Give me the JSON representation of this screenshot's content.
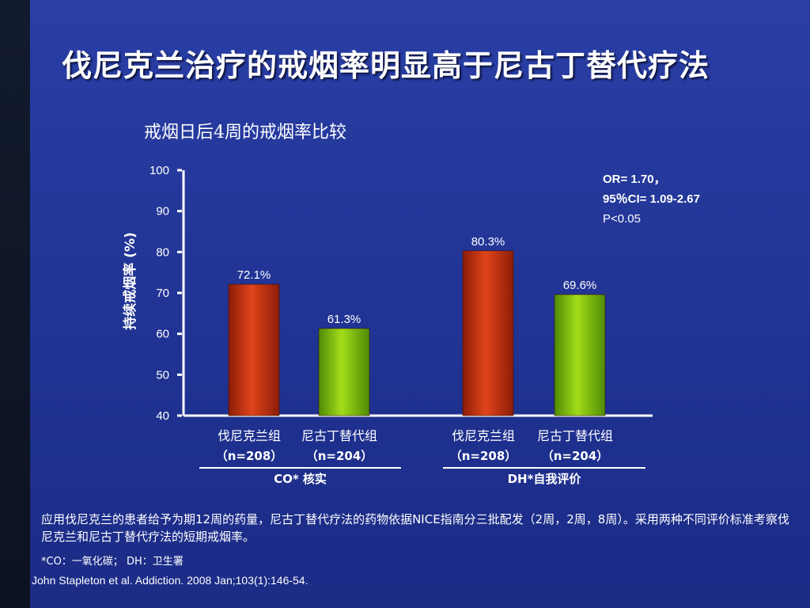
{
  "slide": {
    "title": "伐尼克兰治疗的戒烟率明显高于尼古丁替代疗法",
    "footnote": "应用伐尼克兰的患者给予为期12周的药量，尼古丁替代疗法的药物依据NICE指南分三批配发（2周，2周，8周）。采用两种不同评价标准考察伐尼克兰和尼古丁替代疗法的短期戒烟率。",
    "abbreviations": "*CO：一氧化碳； DH：卫生署",
    "reference": "John Stapleton et al. Addiction. 2008 Jan;103(1):146-54."
  },
  "stats": {
    "line1": "OR= 1.70，",
    "line2": "95％CI= 1.09-2.67",
    "line3": "P<0.05"
  },
  "colors": {
    "varenicline_bar": "#c0300f",
    "nrt_bar": "#7fc40a",
    "background": "#2337a0",
    "axis": "#ffffff"
  },
  "chart_data": {
    "type": "bar",
    "title": "戒烟日后4周的戒烟率比较",
    "ylabel": "持续戒烟率 (%)",
    "ylim": [
      40,
      100
    ],
    "yticks": [
      40,
      50,
      60,
      70,
      80,
      90,
      100
    ],
    "bars": [
      {
        "group": "CO* 核实",
        "name": "伐尼克兰组",
        "n": "（n=208）",
        "value": 72.1,
        "label": "72.1%",
        "color": "#c0300f"
      },
      {
        "group": "CO* 核实",
        "name": "尼古丁替代组",
        "n": "（n=204）",
        "value": 61.3,
        "label": "61.3%",
        "color": "#7fc40a"
      },
      {
        "group": "DH*自我评价",
        "name": "伐尼克兰组",
        "n": "（n=208）",
        "value": 80.3,
        "label": "80.3%",
        "color": "#c0300f"
      },
      {
        "group": "DH*自我评价",
        "name": "尼古丁替代组",
        "n": "（n=204）",
        "value": 69.6,
        "label": "69.6%",
        "color": "#7fc40a"
      }
    ],
    "groups": [
      "CO* 核实",
      "DH*自我评价"
    ]
  }
}
